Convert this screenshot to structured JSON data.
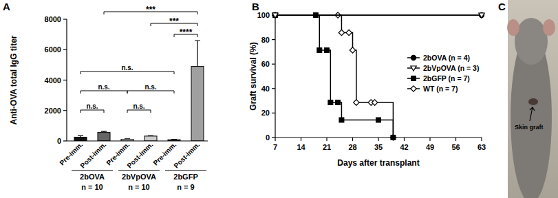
{
  "panel_labels": [
    "A",
    "B",
    "C"
  ],
  "chart_data": [
    {
      "type": "bar",
      "y_label": "Anti-OVA total IgG titer",
      "categories": [
        "Pre-imm.",
        "Post-imm.",
        "Pre-imm.",
        "Post-imm.",
        "Pre-imm.",
        "Post-imm."
      ],
      "values": [
        250,
        560,
        110,
        320,
        80,
        4900
      ],
      "errors": [
        90,
        70,
        30,
        30,
        30,
        1700
      ],
      "colors": [
        "#111111",
        "#666666",
        "#ffffff",
        "#cccccc",
        "#444444",
        "#a0a0a0"
      ],
      "ylim": [
        0,
        8000
      ],
      "yticks": [
        0,
        2000,
        4000,
        6000,
        8000
      ],
      "groups": [
        {
          "label": "2bOVA",
          "n": "n = 10",
          "from": 0,
          "to": 1
        },
        {
          "label": "2bVpOVA",
          "n": "n = 10",
          "from": 2,
          "to": 3
        },
        {
          "label": "2bGFP",
          "n": "n = 9",
          "from": 4,
          "to": 5
        }
      ],
      "comparisons": [
        {
          "from": 0,
          "to": 1,
          "label": "n.s."
        },
        {
          "from": 2,
          "to": 3,
          "label": "n.s."
        },
        {
          "from": 0,
          "to": 2,
          "label": "n.s."
        },
        {
          "from": 2,
          "to": 4,
          "label": "n.s."
        },
        {
          "from": 0,
          "to": 4,
          "label": "n.s."
        },
        {
          "from": 4,
          "to": 5,
          "label": "****"
        },
        {
          "from": 3,
          "to": 5,
          "label": "***"
        },
        {
          "from": 1,
          "to": 5,
          "label": "***"
        }
      ]
    },
    {
      "type": "line",
      "x_label": "Days after transplant",
      "y_label": "Graft survival (%)",
      "xlim": [
        7,
        63
      ],
      "xticks": [
        7,
        14,
        21,
        28,
        35,
        42,
        49,
        56,
        63
      ],
      "ylim": [
        0,
        100
      ],
      "yticks": [
        0,
        20,
        40,
        60,
        80,
        100
      ],
      "legend": "right",
      "series": [
        {
          "name": "2bOVA (n = 4)",
          "color": "#000000",
          "marker": "circle",
          "line_style": "step",
          "x": [
            7,
            63
          ],
          "values": [
            100,
            100
          ]
        },
        {
          "name": "2bVpOVA (n = 3)",
          "color": "#000000",
          "marker": "triangle-down-open",
          "line_style": "step",
          "x": [
            7,
            63
          ],
          "values": [
            100,
            100
          ]
        },
        {
          "name": "2bGFP (n = 7)",
          "color": "#000000",
          "marker": "square",
          "line_style": "step",
          "x": [
            7,
            18,
            19,
            21,
            22,
            24,
            25,
            35,
            39
          ],
          "values": [
            100,
            100,
            71.4,
            71.4,
            28.6,
            28.6,
            14.3,
            14.3,
            0
          ]
        },
        {
          "name": "WT (n = 7)",
          "color": "#000000",
          "marker": "diamond-open",
          "line_style": "step",
          "x": [
            7,
            24,
            25,
            27,
            28,
            29,
            33,
            34,
            39
          ],
          "values": [
            100,
            100,
            85.7,
            85.7,
            71.4,
            28.6,
            28.6,
            28.6,
            0
          ]
        }
      ]
    }
  ],
  "photo": {
    "annotation": "Skin graft"
  }
}
